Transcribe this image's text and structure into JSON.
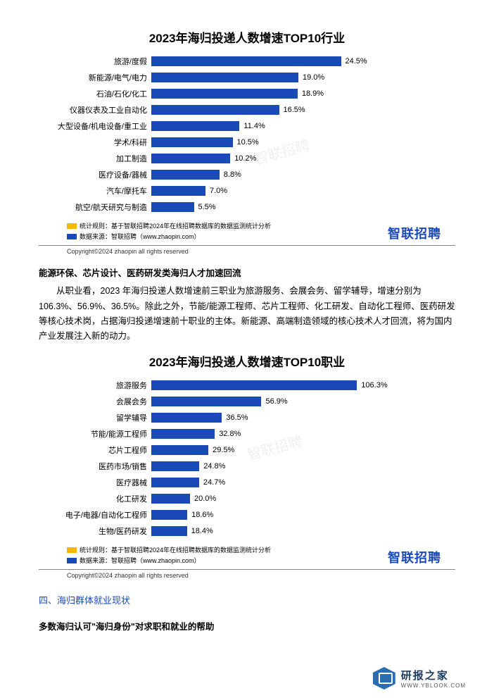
{
  "chart1": {
    "type": "bar-horizontal",
    "title": "2023年海归投递人数增速TOP10行业",
    "bar_color": "#1a4ab8",
    "label_fontsize": 11,
    "value_fontsize": 11,
    "title_fontsize": 17,
    "xmax": 30,
    "bars": [
      {
        "label": "旅游/度假",
        "value": 24.5,
        "value_text": "24.5%"
      },
      {
        "label": "新能源/电气/电力",
        "value": 19.0,
        "value_text": "19.0%"
      },
      {
        "label": "石油/石化/化工",
        "value": 18.9,
        "value_text": "18.9%"
      },
      {
        "label": "仪器仪表及工业自动化",
        "value": 16.5,
        "value_text": "16.5%"
      },
      {
        "label": "大型设备/机电设备/重工业",
        "value": 11.4,
        "value_text": "11.4%"
      },
      {
        "label": "学术/科研",
        "value": 10.5,
        "value_text": "10.5%"
      },
      {
        "label": "加工制造",
        "value": 10.2,
        "value_text": "10.2%"
      },
      {
        "label": "医疗设备/器械",
        "value": 8.8,
        "value_text": "8.8%"
      },
      {
        "label": "汽车/摩托车",
        "value": 7.0,
        "value_text": "7.0%"
      },
      {
        "label": "航空/航天研究与制造",
        "value": 5.5,
        "value_text": "5.5%"
      }
    ],
    "legend": [
      {
        "color": "#f5b800",
        "text": "统计规则：基于智联招聘2024年在线招聘数据库的数据监测统计分析"
      },
      {
        "color": "#1a4ab8",
        "text": "数据来源：智联招聘（www.zhaopin.com）"
      }
    ],
    "brand": "智联招聘",
    "brand_color": "#1a4ab8",
    "copyright": "Copyright©2024 zhaopin all rights reserved"
  },
  "bodytext": {
    "heading": "能源环保、芯片设计、医药研发类海归人才加速回流",
    "para": "从职业看，2023 年海归投递人数增速前三职业为旅游服务、会展会务、留学辅导，增速分别为 106.3%、56.9%、36.5%。除此之外，节能/能源工程师、芯片工程师、化工研发、自动化工程师、医药研发等核心技术岗，占据海归投递增速前十职业的主体。新能源、高端制造领域的核心技术人才回流，将为国内产业发展注入新的动力。"
  },
  "chart2": {
    "type": "bar-horizontal",
    "title": "2023年海归投递人数增速TOP10职业",
    "bar_color": "#1a4ab8",
    "label_fontsize": 11,
    "value_fontsize": 11,
    "title_fontsize": 17,
    "xmax": 120,
    "bars": [
      {
        "label": "旅游服务",
        "value": 106.3,
        "value_text": "106.3%"
      },
      {
        "label": "会展会务",
        "value": 56.9,
        "value_text": "56.9%"
      },
      {
        "label": "留学辅导",
        "value": 36.5,
        "value_text": "36.5%"
      },
      {
        "label": "节能/能源工程师",
        "value": 32.8,
        "value_text": "32.8%"
      },
      {
        "label": "芯片工程师",
        "value": 29.5,
        "value_text": "29.5%"
      },
      {
        "label": "医药市场/销售",
        "value": 24.8,
        "value_text": "24.8%"
      },
      {
        "label": "医疗器械",
        "value": 24.7,
        "value_text": "24.7%"
      },
      {
        "label": "化工研发",
        "value": 20.0,
        "value_text": "20.0%"
      },
      {
        "label": "电子/电器/自动化工程师",
        "value": 18.6,
        "value_text": "18.6%"
      },
      {
        "label": "生物/医药研发",
        "value": 18.4,
        "value_text": "18.4%"
      }
    ],
    "legend": [
      {
        "color": "#f5b800",
        "text": "统计规则：基于智联招聘2024年在线招聘数据库的数据监测统计分析"
      },
      {
        "color": "#1a4ab8",
        "text": "数据来源：智联招聘（www.zhaopin.com）"
      }
    ],
    "brand": "智联招聘",
    "brand_color": "#1a4ab8",
    "copyright": "Copyright©2024 zhaopin all rights reserved"
  },
  "section": {
    "number": "四、海归群体就业现状",
    "sub": "多数海归认可\"海归身份\"对求职和就业的帮助"
  },
  "footer": {
    "cn": "研报之家",
    "en": "WWW.YBLOOK.COM",
    "icon_color": "#2a6db0"
  },
  "watermark": "智联招聘"
}
